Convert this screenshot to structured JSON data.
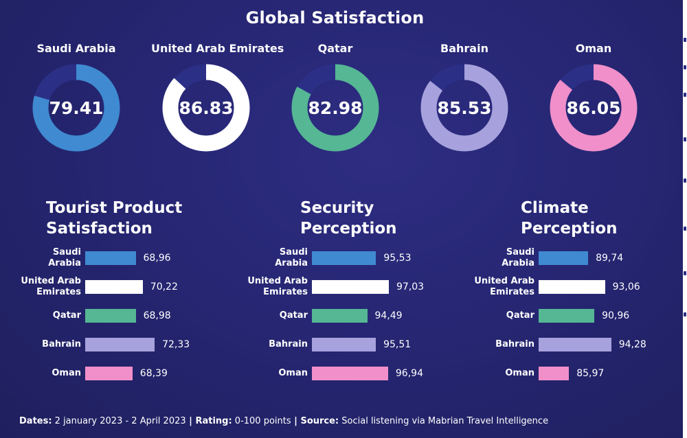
{
  "title": "Global Satisfaction",
  "colors": {
    "Saudi Arabia": "#3f8ad1",
    "United Arab Emirates": "#ffffff",
    "Qatar": "#55b794",
    "Bahrain": "#a7a2dd",
    "Oman": "#f08fc9",
    "track": "#2c2f86"
  },
  "chart_data": [
    {
      "type": "pie",
      "title": "Global Satisfaction",
      "categories": [
        "Saudi Arabia",
        "United Arab Emirates",
        "Qatar",
        "Bahrain",
        "Oman"
      ],
      "value_labels": [
        "79.41",
        "86.83",
        "82.98",
        "85.53",
        "86.05"
      ],
      "values": [
        79.41,
        86.83,
        82.98,
        85.53,
        86.05
      ],
      "ylim": [
        0,
        100
      ]
    },
    {
      "type": "bar",
      "title_lines": [
        "Tourist Product",
        "Satisfaction"
      ],
      "category_labels": [
        [
          "Saudi",
          "Arabia"
        ],
        [
          "United Arab",
          "Emirates"
        ],
        [
          "Qatar"
        ],
        [
          "Bahrain"
        ],
        [
          "Oman"
        ]
      ],
      "categories": [
        "Saudi Arabia",
        "United Arab Emirates",
        "Qatar",
        "Bahrain",
        "Oman"
      ],
      "value_labels": [
        "68,96",
        "70,22",
        "68,98",
        "72,33",
        "68,39"
      ],
      "values": [
        68.96,
        70.22,
        68.98,
        72.33,
        68.39
      ]
    },
    {
      "type": "bar",
      "title_lines": [
        "Security",
        "Perception"
      ],
      "category_labels": [
        [
          "Saudi",
          "Arabia"
        ],
        [
          "United Arab",
          "Emirates"
        ],
        [
          "Qatar"
        ],
        [
          "Bahrain"
        ],
        [
          "Oman"
        ]
      ],
      "categories": [
        "Saudi Arabia",
        "United Arab Emirates",
        "Qatar",
        "Bahrain",
        "Oman"
      ],
      "value_labels": [
        "95,53",
        "97,03",
        "94,49",
        "95,51",
        "96,94"
      ],
      "values": [
        95.53,
        97.03,
        94.49,
        95.51,
        96.94
      ]
    },
    {
      "type": "bar",
      "title_lines": [
        "Climate",
        "Perception"
      ],
      "category_labels": [
        [
          "Saudi",
          "Arabia"
        ],
        [
          "United Arab",
          "Emirates"
        ],
        [
          "Qatar"
        ],
        [
          "Bahrain"
        ],
        [
          "Oman"
        ]
      ],
      "categories": [
        "Saudi Arabia",
        "United Arab Emirates",
        "Qatar",
        "Bahrain",
        "Oman"
      ],
      "value_labels": [
        "89,74",
        "93,06",
        "90,96",
        "94,28",
        "85,97"
      ],
      "values": [
        89.74,
        93.06,
        90.96,
        94.28,
        85.97
      ]
    }
  ],
  "footer": {
    "dates_label": "Dates:",
    "dates_value": " 2 january 2023 - 2 April 2023",
    "sep1": " | ",
    "rating_label": "Rating:",
    "rating_value": " 0-100 points",
    "sep2": " | ",
    "source_label": "Source:",
    "source_value": " Social listening via Mabrian Travel Intelligence"
  }
}
